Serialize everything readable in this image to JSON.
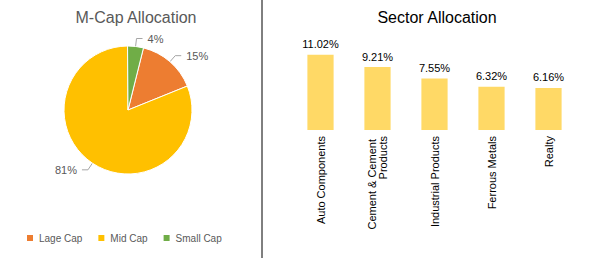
{
  "chart_data": [
    {
      "type": "pie",
      "title": "M-Cap Allocation",
      "categories": [
        "Lage Cap",
        "Mid Cap",
        "Small Cap"
      ],
      "values": [
        15,
        81,
        4
      ],
      "value_labels": [
        "15%",
        "81%",
        "4%"
      ],
      "colors": [
        "#ed7d31",
        "#ffc000",
        "#70ad47"
      ],
      "data_labels": true,
      "legend": "bottom"
    },
    {
      "type": "bar",
      "title": "Sector Allocation",
      "categories": [
        "Auto Components",
        "Cement & Cement Products",
        "Industrial Products",
        "Ferrous Metals",
        "Realty"
      ],
      "values": [
        11.02,
        9.21,
        7.55,
        6.32,
        6.16
      ],
      "value_labels": [
        "11.02%",
        "9.21%",
        "7.55%",
        "6.32%",
        "6.16%"
      ],
      "color": "#ffd966",
      "data_labels": true,
      "grid": false,
      "tick_labels": "x"
    }
  ]
}
